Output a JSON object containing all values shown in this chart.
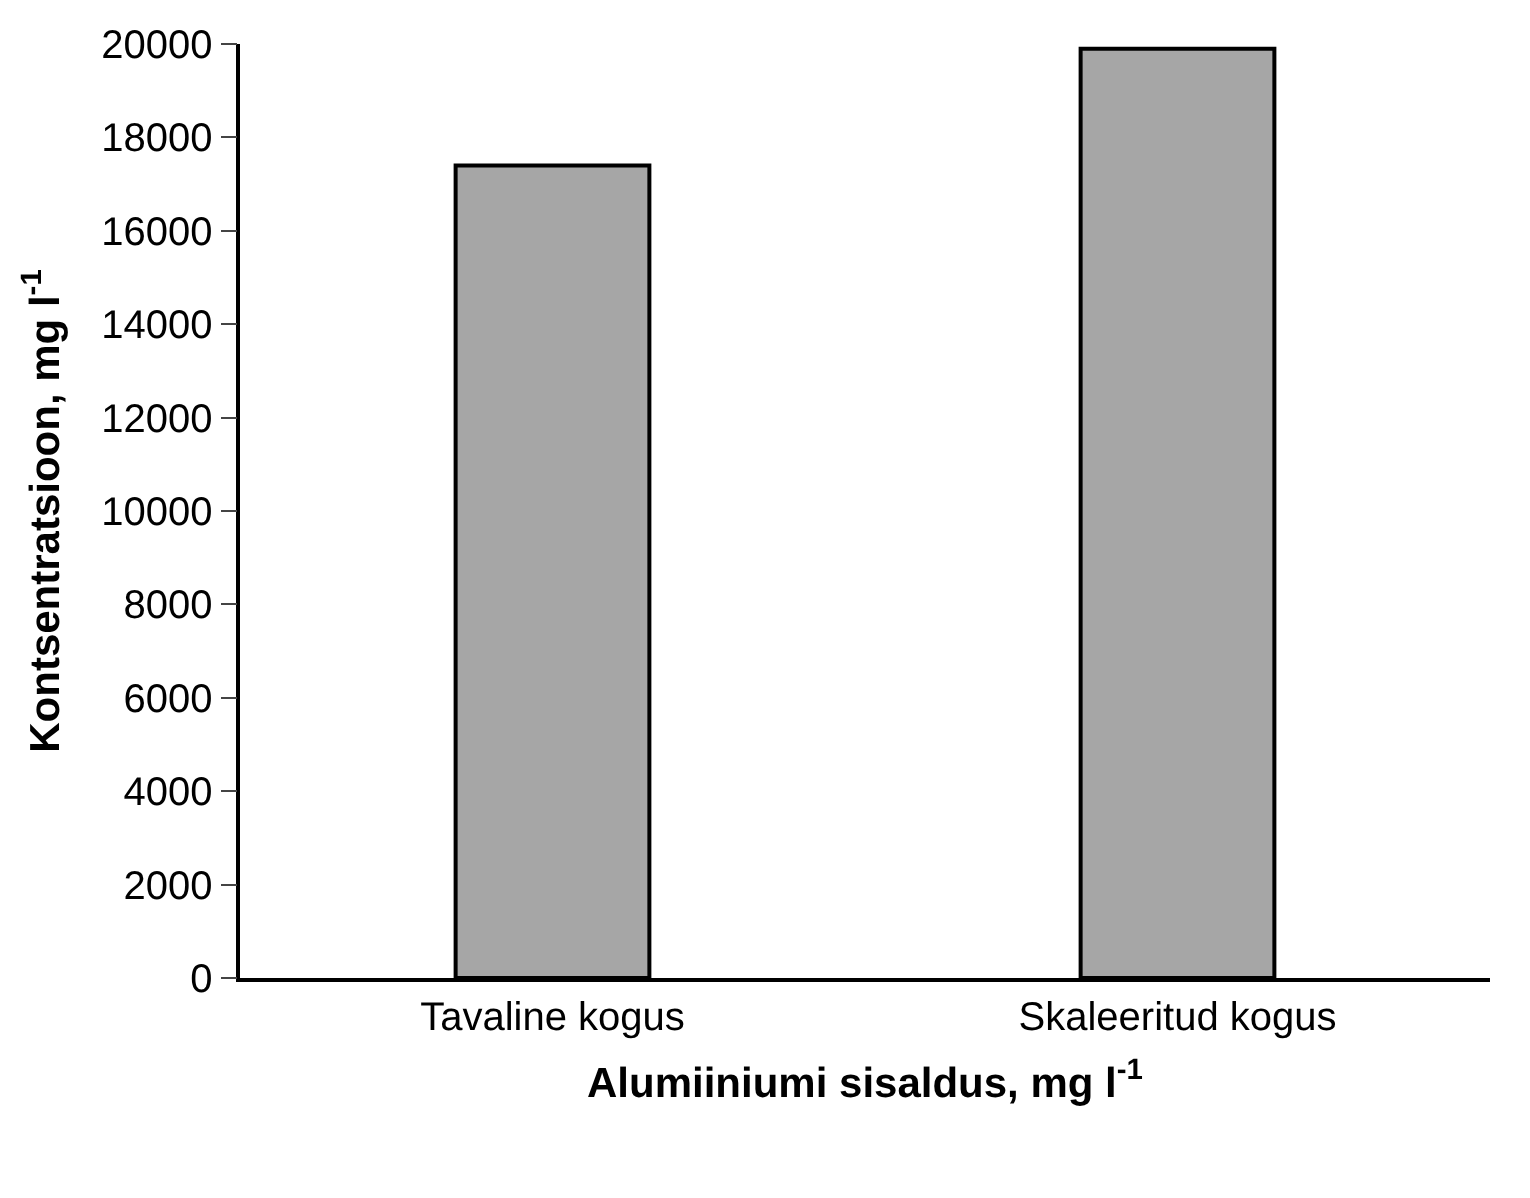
{
  "chart_data": {
    "type": "bar",
    "xlabel": "Alumiiniumi sisaldus, mg l$^{-1}$",
    "ylabel": "Kontsentratsioon, mg l$^{-1}$",
    "categories": [
      "Tavaline kogus",
      "Skaleeritud kogus"
    ],
    "values": [
      17400,
      19900
    ],
    "color": "#a6a6a6",
    "ylim": [
      0,
      20000
    ],
    "yticks": [
      0,
      2000,
      4000,
      6000,
      8000,
      10000,
      12000,
      14000,
      16000,
      18000,
      20000
    ]
  }
}
